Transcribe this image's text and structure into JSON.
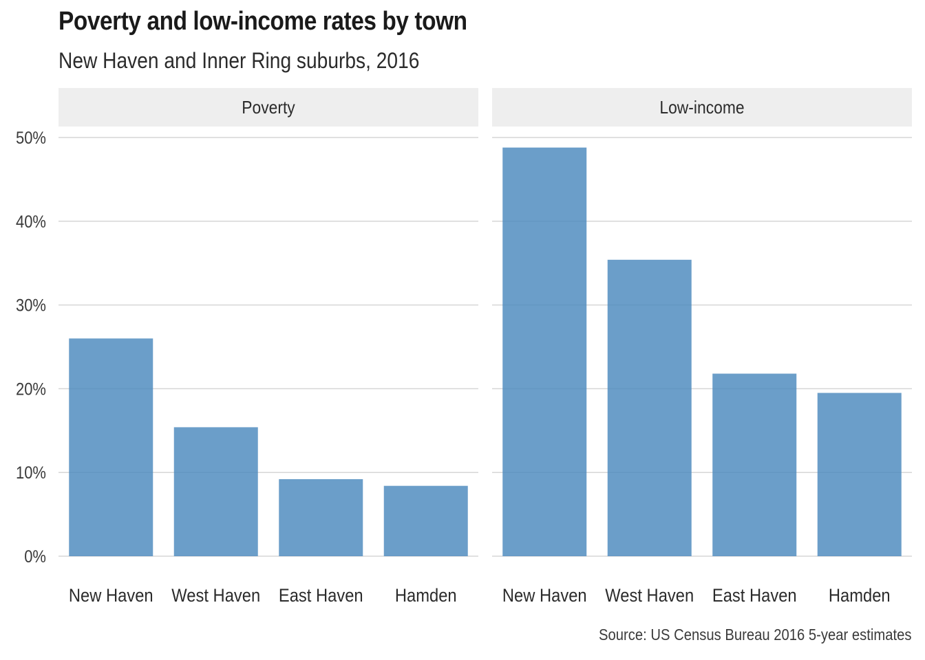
{
  "title": "Poverty and low-income rates by town",
  "subtitle": "New Haven and Inner Ring suburbs, 2016",
  "caption": "Source: US Census Bureau 2016 5-year estimates",
  "colors": {
    "bar": "#4a89bd",
    "strip": "#eeeeee",
    "grid": "#d6d6d6"
  },
  "chart_data": {
    "type": "bar",
    "categories": [
      "New Haven",
      "West Haven",
      "East Haven",
      "Hamden"
    ],
    "ylim": [
      0,
      0.5
    ],
    "y_ticks": [
      0,
      0.1,
      0.2,
      0.3,
      0.4,
      0.5
    ],
    "y_tick_labels": [
      "0%",
      "10%",
      "20%",
      "30%",
      "40%",
      "50%"
    ],
    "grid": true,
    "panels": [
      {
        "name": "Poverty",
        "values": [
          0.26,
          0.154,
          0.092,
          0.084
        ]
      },
      {
        "name": "Low-income",
        "values": [
          0.488,
          0.354,
          0.218,
          0.195
        ]
      }
    ]
  }
}
